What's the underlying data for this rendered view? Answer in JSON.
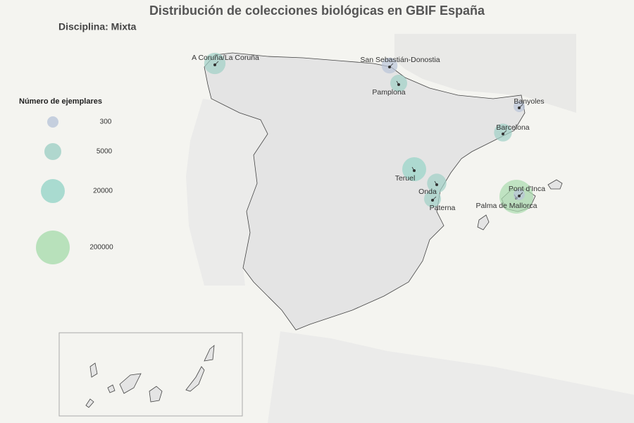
{
  "title": "Distribución de  colecciones biológicas  en GBIF España",
  "subtitle": "Disciplina: Mixta",
  "legend": {
    "title": "Número de ejemplares",
    "items": [
      {
        "value": 300,
        "color": "#b9c5d9"
      },
      {
        "value": 5000,
        "color": "#9fd0c6"
      },
      {
        "value": 20000,
        "color": "#96d4c8"
      },
      {
        "value": 200000,
        "color": "#a9dcae"
      }
    ]
  },
  "points": [
    {
      "label": "A Coruña/La Coruña",
      "value": 12000
    },
    {
      "label": "San Sebastián-Donostia",
      "value": 3000
    },
    {
      "label": "Pamplona",
      "value": 5000
    },
    {
      "label": "Banyoles",
      "value": 300
    },
    {
      "label": "Barcelona",
      "value": 6000
    },
    {
      "label": "Teruel",
      "value": 20000
    },
    {
      "label": "Onda",
      "value": 8000
    },
    {
      "label": "Paterna",
      "value": 5000
    },
    {
      "label": "Palma de Mallorca",
      "value": 200000
    },
    {
      "label": "Pont d'Inca",
      "value": 300
    }
  ]
}
